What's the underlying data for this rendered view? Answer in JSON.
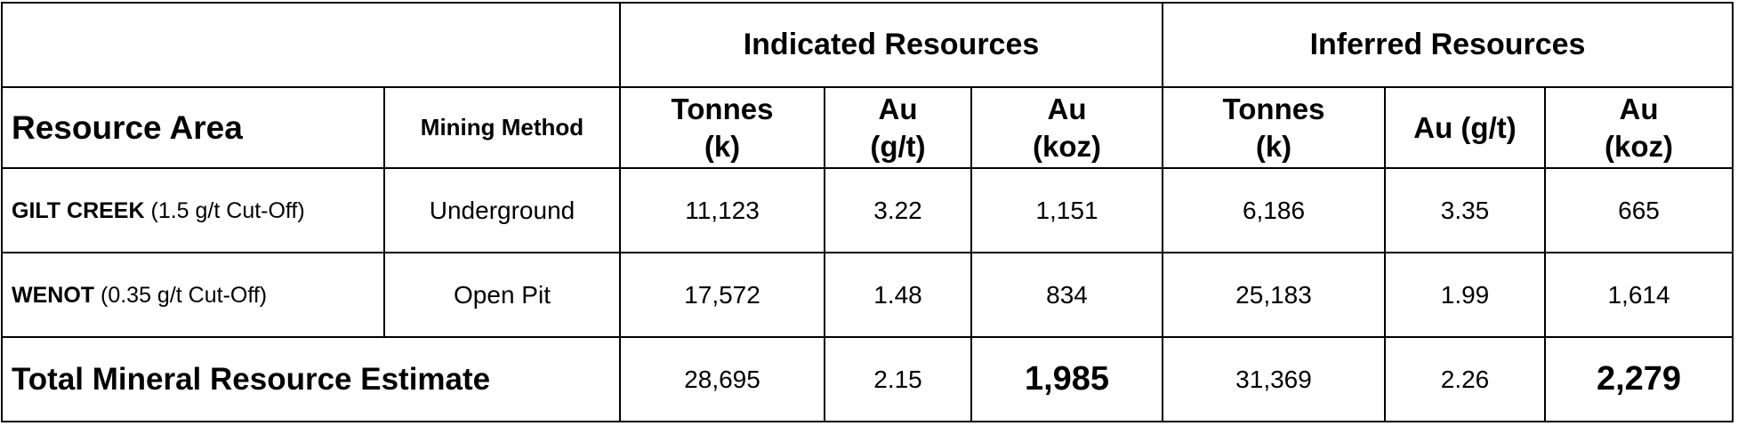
{
  "groups": {
    "indicated": "Indicated Resources",
    "inferred": "Inferred Resources"
  },
  "headers": {
    "resource_area": "Resource Area",
    "mining_method": "Mining Method",
    "indicated": {
      "tonnes_line1": "Tonnes",
      "tonnes_line2": "(k)",
      "grade_line1": "Au",
      "grade_line2": "(g/t)",
      "ounces_line1": "Au",
      "ounces_line2": "(koz)"
    },
    "inferred": {
      "tonnes_line1": "Tonnes",
      "tonnes_line2": "(k)",
      "grade": "Au (g/t)",
      "ounces_line1": "Au",
      "ounces_line2": "(koz)"
    }
  },
  "rows": [
    {
      "area_name": "GILT CREEK",
      "area_note": " (1.5 g/t Cut-Off)",
      "method": "Underground",
      "ind_tonnes": "11,123",
      "ind_grade": "3.22",
      "ind_koz": "1,151",
      "inf_tonnes": "6,186",
      "inf_grade": "3.35",
      "inf_koz": "665"
    },
    {
      "area_name": "WENOT",
      "area_note": " (0.35 g/t Cut-Off)",
      "method": "Open Pit",
      "ind_tonnes": "17,572",
      "ind_grade": "1.48",
      "ind_koz": "834",
      "inf_tonnes": "25,183",
      "inf_grade": "1.99",
      "inf_koz": "1,614"
    }
  ],
  "total": {
    "label": "Total Mineral Resource Estimate",
    "ind_tonnes": "28,695",
    "ind_grade": "2.15",
    "ind_koz": "1,985",
    "inf_tonnes": "31,369",
    "inf_grade": "2.26",
    "inf_koz": "2,279"
  }
}
